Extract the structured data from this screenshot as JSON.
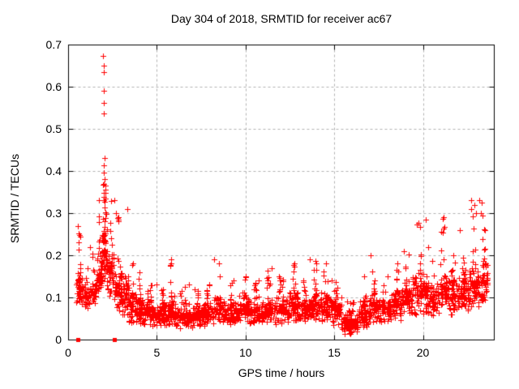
{
  "window": {
    "background": "#ffffff"
  },
  "header": {
    "title": "Day 304 of 2018, SRMTID for receiver ac67"
  },
  "chart_data": {
    "type": "scatter",
    "title": "Day 304 of 2018, SRMTID for receiver ac67",
    "xlabel": "GPS time / hours",
    "ylabel": "SRMTID / TECUs",
    "xlim": [
      0,
      24
    ],
    "ylim": [
      0,
      0.7
    ],
    "xticks": [
      0,
      5,
      10,
      15,
      20
    ],
    "xtick_labels": [
      "0",
      "5",
      "10",
      "15",
      "20"
    ],
    "yticks": [
      0,
      0.1,
      0.2,
      0.3,
      0.4,
      0.5,
      0.6,
      0.7
    ],
    "ytick_labels": [
      "0",
      "0.1",
      "0.2",
      "0.3",
      "0.4",
      "0.5",
      "0.6",
      "0.7"
    ],
    "grid": {
      "visible": true,
      "style": "dashed",
      "color": "#b0b0b0"
    },
    "axis_color": "#000000",
    "text_color": "#000000",
    "legend": "none",
    "rng_seed": 42,
    "bin_format": [
      "x_start_hours",
      "x_end_hours",
      "n_points",
      "y_min",
      "y_typical",
      "y_max"
    ],
    "series": [
      {
        "name": "srmtid-points",
        "marker": "plus",
        "color": "#ff0000",
        "envelope_bins": [
          [
            0.45,
            0.8,
            55,
            0.07,
            0.12,
            0.27
          ],
          [
            0.8,
            1.2,
            40,
            0.07,
            0.1,
            0.17
          ],
          [
            1.2,
            1.6,
            40,
            0.08,
            0.11,
            0.22
          ],
          [
            1.6,
            1.9,
            45,
            0.09,
            0.15,
            0.33
          ],
          [
            1.9,
            2.2,
            75,
            0.1,
            0.21,
            0.37
          ],
          [
            2.2,
            2.6,
            55,
            0.08,
            0.16,
            0.33
          ],
          [
            2.6,
            3.0,
            55,
            0.05,
            0.12,
            0.3
          ],
          [
            3.0,
            3.4,
            50,
            0.04,
            0.1,
            0.31
          ],
          [
            3.4,
            3.8,
            45,
            0.03,
            0.08,
            0.18
          ],
          [
            3.8,
            4.2,
            50,
            0.03,
            0.07,
            0.16
          ],
          [
            4.2,
            5.0,
            80,
            0.03,
            0.06,
            0.13
          ],
          [
            5.0,
            5.6,
            70,
            0.03,
            0.06,
            0.12
          ],
          [
            5.6,
            6.0,
            50,
            0.03,
            0.07,
            0.19
          ],
          [
            6.0,
            7.0,
            100,
            0.02,
            0.055,
            0.13
          ],
          [
            7.0,
            7.6,
            70,
            0.02,
            0.05,
            0.12
          ],
          [
            7.6,
            8.2,
            65,
            0.03,
            0.06,
            0.13
          ],
          [
            8.2,
            8.8,
            65,
            0.03,
            0.07,
            0.19
          ],
          [
            8.8,
            9.6,
            80,
            0.03,
            0.06,
            0.14
          ],
          [
            9.6,
            10.2,
            65,
            0.03,
            0.07,
            0.15
          ],
          [
            10.2,
            11.0,
            80,
            0.03,
            0.06,
            0.14
          ],
          [
            11.0,
            11.6,
            65,
            0.04,
            0.07,
            0.17
          ],
          [
            11.6,
            12.4,
            80,
            0.03,
            0.07,
            0.15
          ],
          [
            12.4,
            13.0,
            65,
            0.04,
            0.08,
            0.18
          ],
          [
            13.0,
            13.6,
            65,
            0.04,
            0.07,
            0.14
          ],
          [
            13.6,
            14.2,
            65,
            0.04,
            0.08,
            0.19
          ],
          [
            14.2,
            14.8,
            65,
            0.04,
            0.08,
            0.18
          ],
          [
            14.8,
            15.4,
            65,
            0.03,
            0.07,
            0.14
          ],
          [
            15.4,
            16.4,
            120,
            0.008,
            0.035,
            0.09
          ],
          [
            16.4,
            17.0,
            65,
            0.02,
            0.06,
            0.15
          ],
          [
            17.0,
            17.4,
            50,
            0.04,
            0.08,
            0.2
          ],
          [
            17.4,
            18.2,
            75,
            0.04,
            0.07,
            0.15
          ],
          [
            18.2,
            18.8,
            65,
            0.04,
            0.08,
            0.18
          ],
          [
            18.8,
            19.4,
            65,
            0.05,
            0.09,
            0.21
          ],
          [
            19.4,
            20.2,
            80,
            0.05,
            0.11,
            0.285
          ],
          [
            20.2,
            20.8,
            65,
            0.05,
            0.1,
            0.22
          ],
          [
            20.8,
            21.4,
            65,
            0.06,
            0.11,
            0.29
          ],
          [
            21.4,
            22.0,
            65,
            0.05,
            0.1,
            0.2
          ],
          [
            22.0,
            22.6,
            65,
            0.06,
            0.11,
            0.26
          ],
          [
            22.6,
            23.2,
            70,
            0.06,
            0.12,
            0.33
          ],
          [
            23.2,
            23.65,
            55,
            0.07,
            0.13,
            0.3
          ]
        ],
        "outlier_points": [
          [
            1.98,
            0.673
          ],
          [
            2.0,
            0.65
          ],
          [
            2.02,
            0.635
          ],
          [
            1.99,
            0.59
          ],
          [
            2.03,
            0.562
          ],
          [
            2.0,
            0.537
          ],
          [
            2.05,
            0.43
          ],
          [
            2.02,
            0.413
          ],
          [
            2.0,
            0.396
          ],
          [
            2.07,
            0.38
          ],
          [
            1.97,
            0.368
          ],
          [
            2.1,
            0.355
          ],
          [
            22.7,
            0.33
          ],
          [
            22.72,
            0.31
          ],
          [
            23.3,
            0.325
          ]
        ]
      },
      {
        "name": "flagged-points",
        "marker": "filled-square",
        "color": "#ff0000",
        "points": [
          [
            0.57,
            0
          ],
          [
            2.62,
            0
          ]
        ]
      }
    ]
  }
}
